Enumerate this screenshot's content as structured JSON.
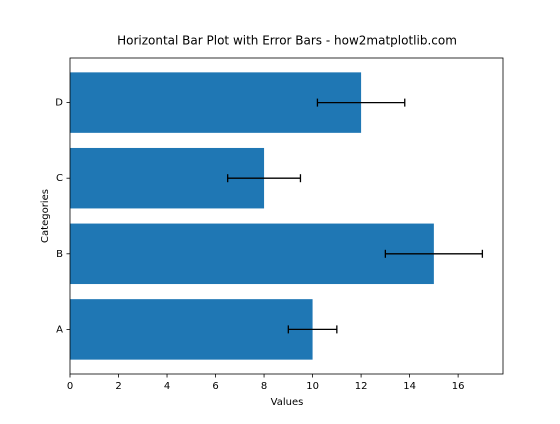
{
  "chart_data": {
    "type": "bar",
    "orientation": "horizontal",
    "title": "Horizontal Bar Plot with Error Bars - how2matplotlib.com",
    "xlabel": "Values",
    "ylabel": "Categories",
    "categories": [
      "A",
      "B",
      "C",
      "D"
    ],
    "values": [
      10,
      15,
      8,
      12
    ],
    "errors": [
      1,
      2,
      1.5,
      1.8
    ],
    "color": "#1f77b4",
    "error_color": "#000000",
    "xlim": [
      0,
      17.85
    ],
    "xticks": [
      0,
      2,
      4,
      6,
      8,
      10,
      12,
      14,
      16
    ],
    "ylim": [
      -0.59,
      3.59
    ]
  }
}
